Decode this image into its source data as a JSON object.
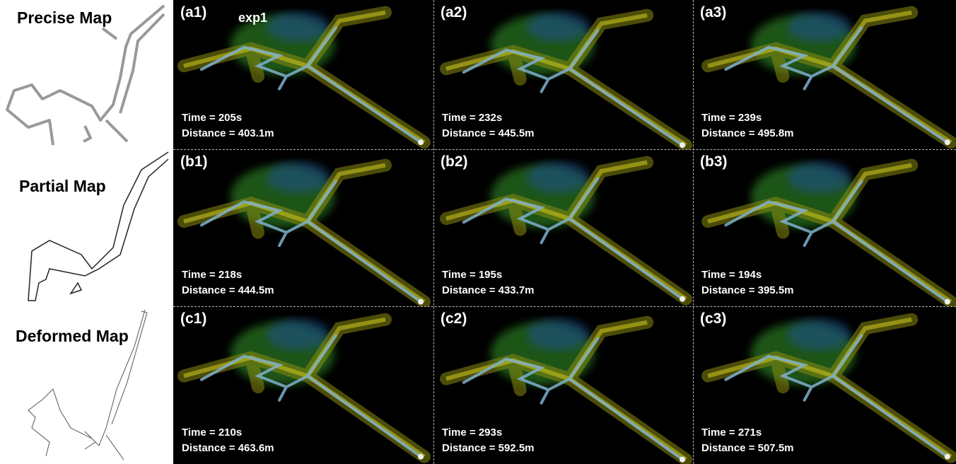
{
  "maps": [
    {
      "label": "Precise Map"
    },
    {
      "label": "Partial Map"
    },
    {
      "label": "Deformed Map"
    }
  ],
  "annotation": "exp1",
  "panels": [
    {
      "label": "(a1)",
      "time": "Time = 205s",
      "distance": "Distance = 403.1m"
    },
    {
      "label": "(a2)",
      "time": "Time = 232s",
      "distance": "Distance = 445.5m"
    },
    {
      "label": "(a3)",
      "time": "Time = 239s",
      "distance": "Distance = 495.8m"
    },
    {
      "label": "(b1)",
      "time": "Time = 218s",
      "distance": "Distance = 444.5m"
    },
    {
      "label": "(b2)",
      "time": "Time = 195s",
      "distance": "Distance = 433.7m"
    },
    {
      "label": "(b3)",
      "time": "Time = 194s",
      "distance": "Distance = 395.5m"
    },
    {
      "label": "(c1)",
      "time": "Time = 210s",
      "distance": "Distance = 463.6m"
    },
    {
      "label": "(c2)",
      "time": "Time = 293s",
      "distance": "Distance = 592.5m"
    },
    {
      "label": "(c3)",
      "time": "Time = 271s",
      "distance": "Distance = 507.5m"
    }
  ]
}
